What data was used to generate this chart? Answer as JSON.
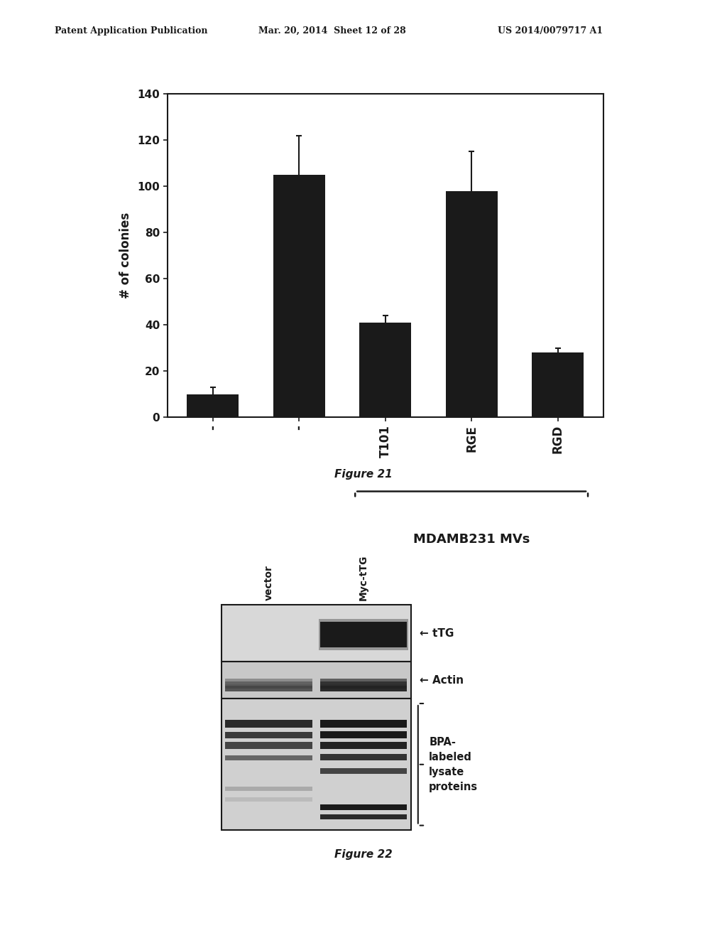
{
  "header_left": "Patent Application Publication",
  "header_mid": "Mar. 20, 2014  Sheet 12 of 28",
  "header_right": "US 2014/0079717 A1",
  "bar_categories": [
    "-",
    "-",
    "T101",
    "RGE",
    "RGD"
  ],
  "bar_values": [
    10,
    105,
    41,
    98,
    28
  ],
  "bar_errors": [
    3,
    17,
    3,
    17,
    2
  ],
  "bar_color": "#1a1a1a",
  "ylabel": "# of colonies",
  "ylim": [
    0,
    140
  ],
  "yticks": [
    0,
    20,
    40,
    60,
    80,
    100,
    120,
    140
  ],
  "xlabel_group": "MDAMB231 MVs",
  "figure21_label": "Figure 21",
  "figure22_label": "Figure 22",
  "blot_labels_top": [
    "vector",
    "Myc-tTG"
  ],
  "blot_row1_label": "← tTG",
  "blot_row2_label": "← Actin",
  "blot_row3_label": "BPA-\nlabeled\nlysate\nproteins",
  "background_color": "#ffffff"
}
